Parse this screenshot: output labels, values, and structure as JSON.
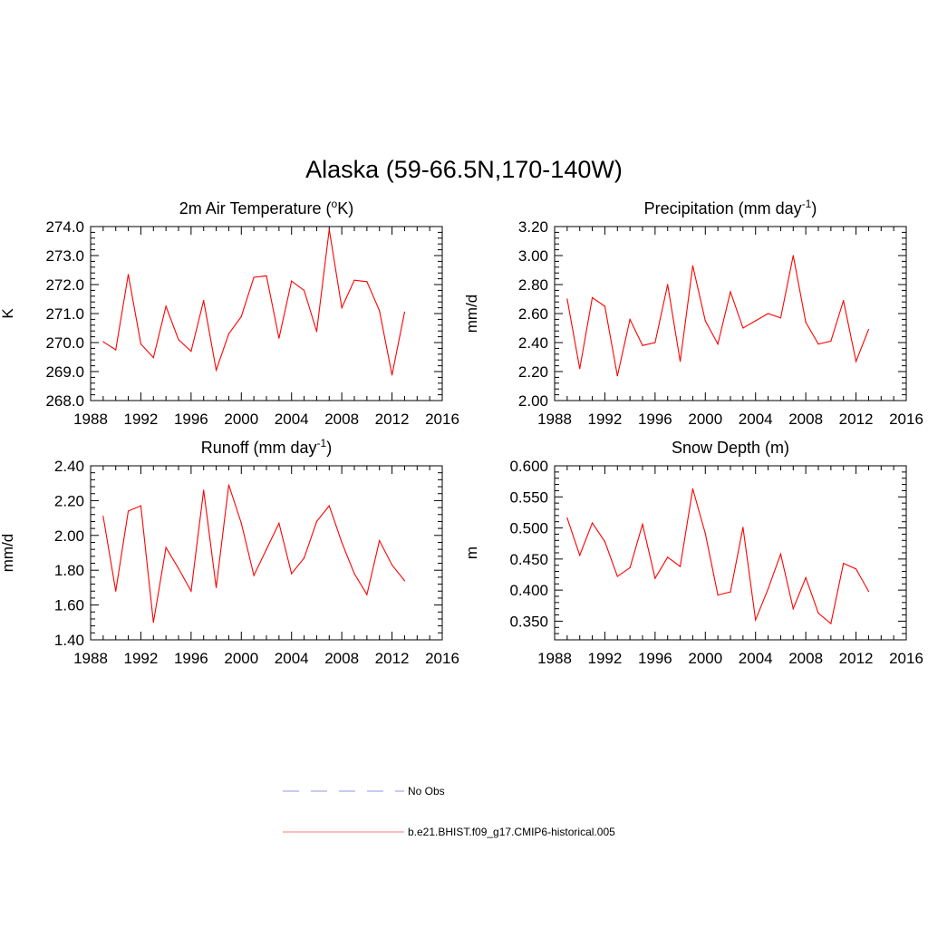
{
  "figure": {
    "title": "Alaska (59-66.5N,170-140W)"
  },
  "chart_data": [
    {
      "type": "line",
      "title": "2m Air Temperature (",
      "title_sup": "o",
      "title_suffix": "K)",
      "ylabel": "K",
      "xlabel": "",
      "xlim": [
        1988,
        2016
      ],
      "ylim": [
        268.0,
        274.0
      ],
      "xticks": [
        "1988",
        "1992",
        "1996",
        "2000",
        "2004",
        "2008",
        "2012",
        "2016"
      ],
      "yticks": [
        "268.0",
        "269.0",
        "270.0",
        "271.0",
        "272.0",
        "273.0",
        "274.0"
      ],
      "series": [
        {
          "name": "b.e21.BHIST.f09_g17.CMIP6-historical.005",
          "color": "#ff0000",
          "x": [
            1989,
            1990,
            1991,
            1992,
            1993,
            1994,
            1995,
            1996,
            1997,
            1998,
            1999,
            2000,
            2001,
            2002,
            2003,
            2004,
            2005,
            2006,
            2007,
            2008,
            2009,
            2010,
            2011,
            2012,
            2013
          ],
          "y": [
            270.03,
            269.75,
            272.35,
            269.95,
            269.48,
            271.25,
            270.1,
            269.7,
            271.45,
            269.05,
            270.3,
            270.9,
            272.25,
            272.3,
            270.15,
            272.12,
            271.8,
            270.38,
            273.9,
            271.2,
            272.15,
            272.1,
            271.1,
            268.88,
            271.05
          ]
        }
      ]
    },
    {
      "type": "line",
      "title": "Precipitation (mm day",
      "title_sup": "-1",
      "title_suffix": ")",
      "ylabel": "mm/d",
      "xlabel": "",
      "xlim": [
        1988,
        2016
      ],
      "ylim": [
        2.0,
        3.2
      ],
      "xticks": [
        "1988",
        "1992",
        "1996",
        "2000",
        "2004",
        "2008",
        "2012",
        "2016"
      ],
      "yticks": [
        "2.00",
        "2.20",
        "2.40",
        "2.60",
        "2.80",
        "3.00",
        "3.20"
      ],
      "series": [
        {
          "name": "b.e21.BHIST.f09_g17.CMIP6-historical.005",
          "color": "#ff0000",
          "x": [
            1989,
            1990,
            1991,
            1992,
            1993,
            1994,
            1995,
            1996,
            1997,
            1998,
            1999,
            2000,
            2001,
            2002,
            2003,
            2004,
            2005,
            2006,
            2007,
            2008,
            2009,
            2010,
            2011,
            2012,
            2013
          ],
          "y": [
            2.7,
            2.22,
            2.71,
            2.65,
            2.17,
            2.56,
            2.38,
            2.4,
            2.8,
            2.27,
            2.93,
            2.55,
            2.39,
            2.75,
            2.5,
            2.55,
            2.6,
            2.57,
            3.0,
            2.54,
            2.39,
            2.41,
            2.69,
            2.27,
            2.49
          ]
        }
      ]
    },
    {
      "type": "line",
      "title": "Runoff (mm day",
      "title_sup": "-1",
      "title_suffix": ")",
      "ylabel": "mm/d",
      "xlabel": "",
      "xlim": [
        1988,
        2016
      ],
      "ylim": [
        1.4,
        2.4
      ],
      "xticks": [
        "1988",
        "1992",
        "1996",
        "2000",
        "2004",
        "2008",
        "2012",
        "2016"
      ],
      "yticks": [
        "1.40",
        "1.60",
        "1.80",
        "2.00",
        "2.20",
        "2.40"
      ],
      "series": [
        {
          "name": "b.e21.BHIST.f09_g17.CMIP6-historical.005",
          "color": "#ff0000",
          "x": [
            1989,
            1990,
            1991,
            1992,
            1993,
            1994,
            1995,
            1996,
            1997,
            1998,
            1999,
            2000,
            2001,
            2002,
            2003,
            2004,
            2005,
            2006,
            2007,
            2008,
            2009,
            2010,
            2011,
            2012,
            2013
          ],
          "y": [
            2.11,
            1.68,
            2.14,
            2.17,
            1.5,
            1.93,
            1.81,
            1.68,
            2.26,
            1.7,
            2.29,
            2.07,
            1.77,
            1.92,
            2.07,
            1.78,
            1.87,
            2.08,
            2.17,
            1.96,
            1.78,
            1.66,
            1.97,
            1.83,
            1.74
          ]
        }
      ]
    },
    {
      "type": "line",
      "title": "Snow Depth (m)",
      "title_sup": "",
      "title_suffix": "",
      "ylabel": "m",
      "xlabel": "",
      "xlim": [
        1988,
        2016
      ],
      "ylim": [
        0.32,
        0.6
      ],
      "xticks": [
        "1988",
        "1992",
        "1996",
        "2000",
        "2004",
        "2008",
        "2012",
        "2016"
      ],
      "yticks": [
        "0.350",
        "0.400",
        "0.450",
        "0.500",
        "0.550",
        "0.600"
      ],
      "ytick_values": [
        0.35,
        0.4,
        0.45,
        0.5,
        0.55,
        0.6
      ],
      "series": [
        {
          "name": "b.e21.BHIST.f09_g17.CMIP6-historical.005",
          "color": "#ff0000",
          "x": [
            1989,
            1990,
            1991,
            1992,
            1993,
            1994,
            1995,
            1996,
            1997,
            1998,
            1999,
            2000,
            2001,
            2002,
            2003,
            2004,
            2005,
            2006,
            2007,
            2008,
            2009,
            2010,
            2011,
            2012,
            2013
          ],
          "y": [
            0.516,
            0.456,
            0.508,
            0.478,
            0.422,
            0.436,
            0.506,
            0.419,
            0.453,
            0.438,
            0.563,
            0.491,
            0.392,
            0.397,
            0.501,
            0.352,
            0.402,
            0.458,
            0.37,
            0.42,
            0.363,
            0.346,
            0.443,
            0.434,
            0.398
          ]
        }
      ]
    }
  ],
  "legend": {
    "items": [
      {
        "label": "No Obs",
        "color": "#aaaaee",
        "style": "dashed"
      },
      {
        "label": "b.e21.BHIST.f09_g17.CMIP6-historical.005",
        "color": "#ff0000",
        "style": "solid"
      }
    ]
  }
}
